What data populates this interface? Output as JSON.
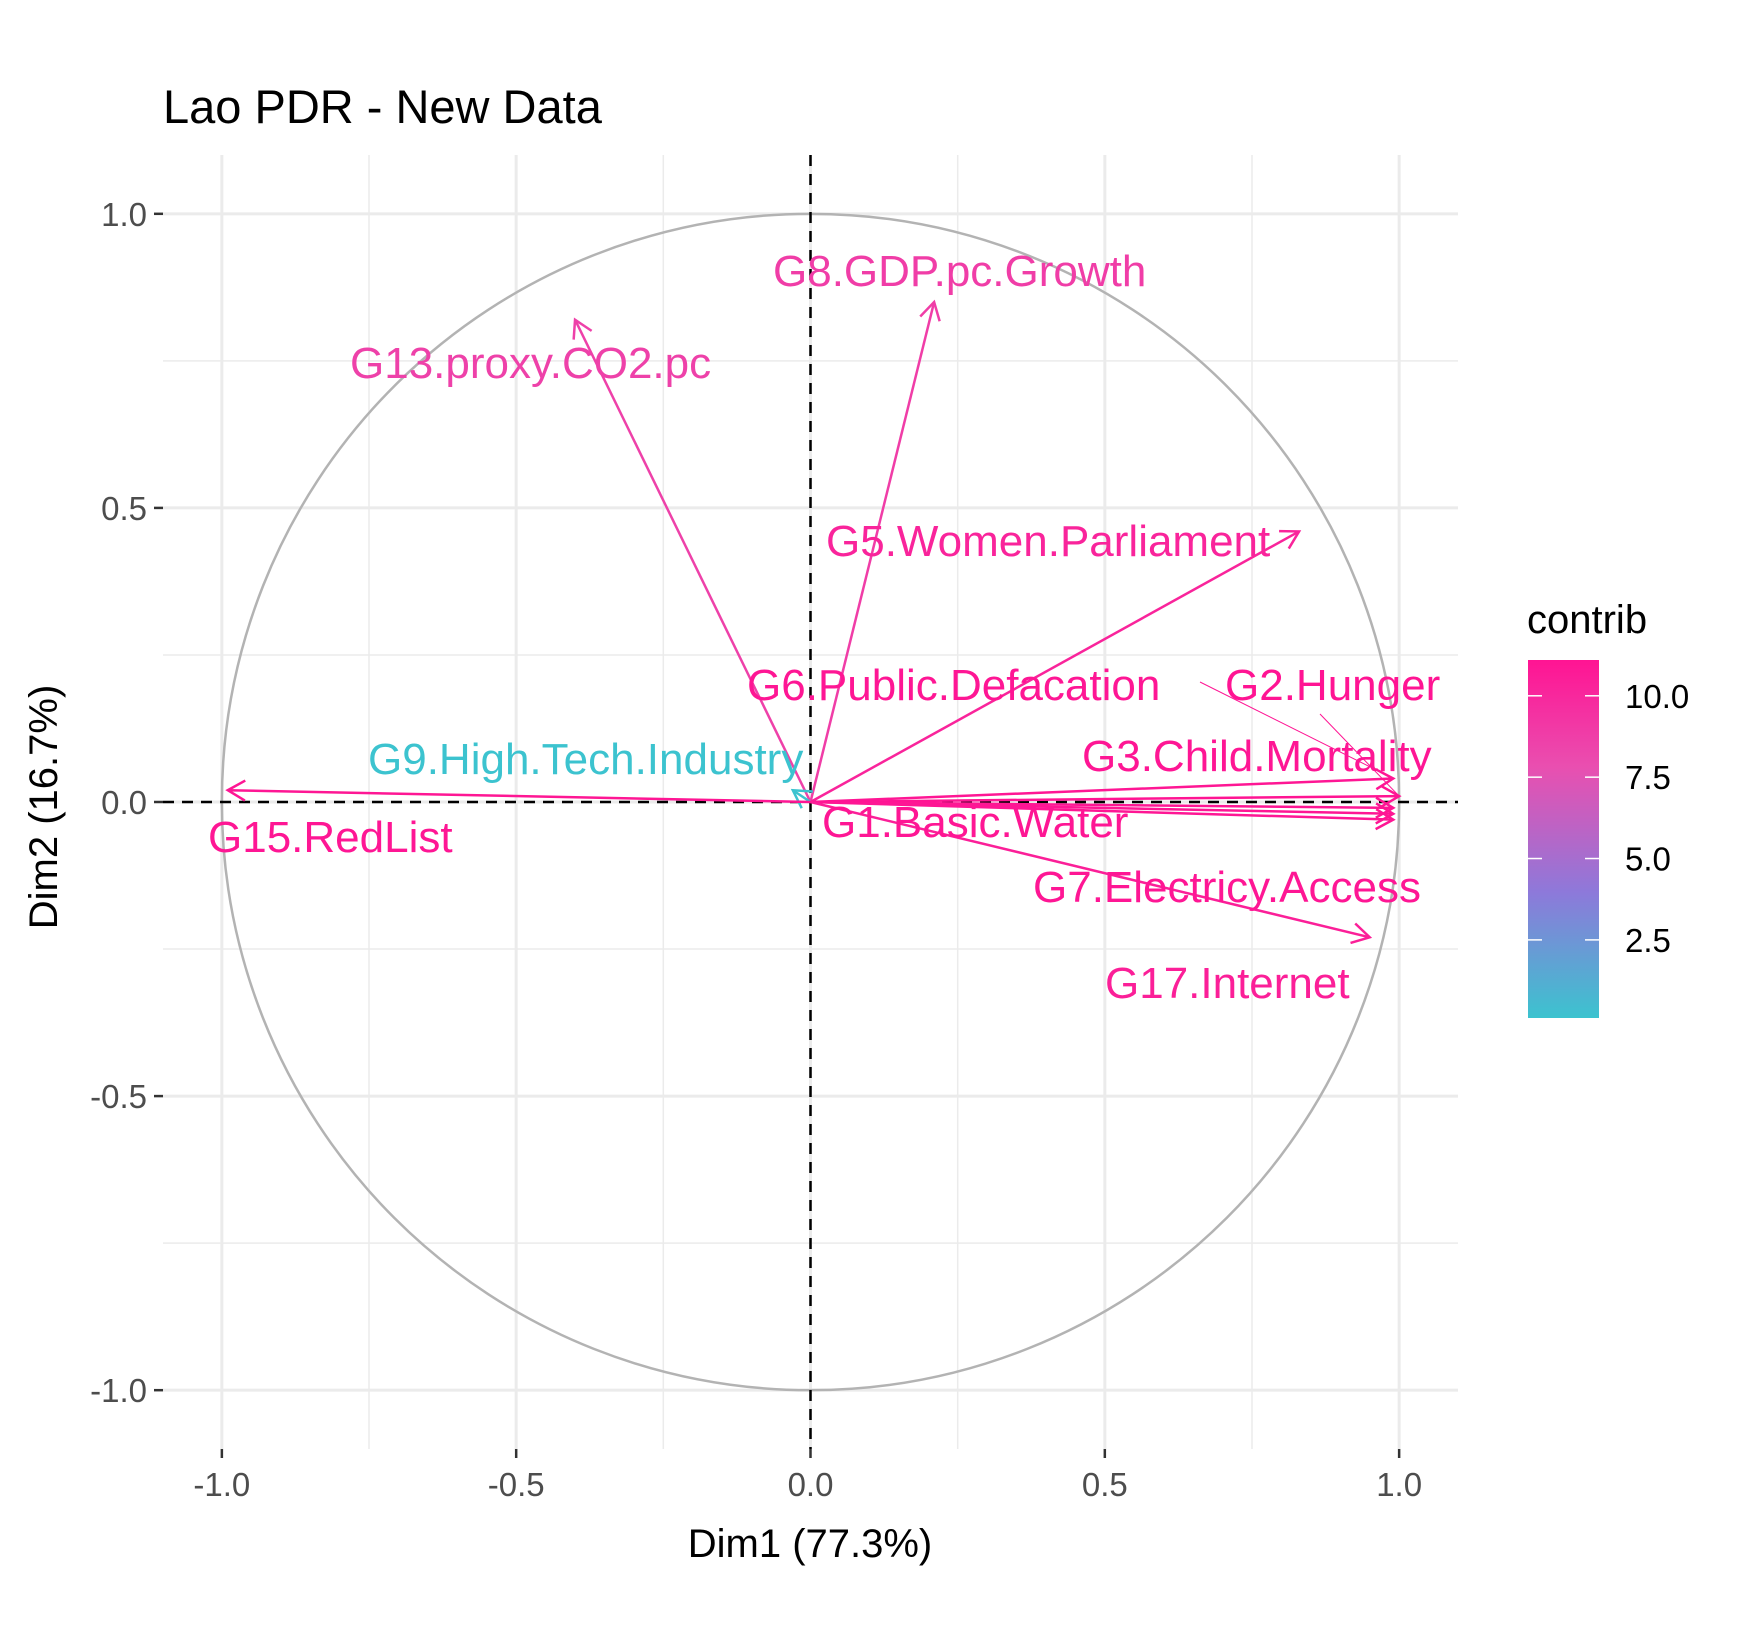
{
  "chart_data": {
    "type": "scatter",
    "subtype": "pca-variable-correlation-circle",
    "title": "Lao PDR - New Data",
    "xlabel": "Dim1 (77.3%)",
    "ylabel": "Dim2 (16.7%)",
    "xlim": [
      -1.1,
      1.1
    ],
    "ylim": [
      -1.1,
      1.1
    ],
    "x_ticks": [
      {
        "value": -1.0,
        "label": "-1.0"
      },
      {
        "value": -0.5,
        "label": "-0.5"
      },
      {
        "value": 0.0,
        "label": "0.0"
      },
      {
        "value": 0.5,
        "label": "0.5"
      },
      {
        "value": 1.0,
        "label": "1.0"
      }
    ],
    "y_ticks": [
      {
        "value": 1.0,
        "label": "1.0"
      },
      {
        "value": 0.5,
        "label": "0.5"
      },
      {
        "value": 0.0,
        "label": "0.0"
      },
      {
        "value": -0.5,
        "label": "-0.5"
      },
      {
        "value": -1.0,
        "label": "-1.0"
      }
    ],
    "grid": true,
    "unit_circle": true,
    "reference_lines": {
      "x": 0,
      "y": 0,
      "style": "dashed"
    },
    "variables": [
      {
        "name": "G8.GDP.pc.Growth",
        "x": 0.21,
        "y": 0.85,
        "contrib": 8.8
      },
      {
        "name": "G13.proxy.CO2.pc",
        "x": -0.4,
        "y": 0.82,
        "contrib": 8.6
      },
      {
        "name": "G5.Women.Parliament",
        "x": 0.83,
        "y": 0.46,
        "contrib": 10.2
      },
      {
        "name": "G6.Public.Defacation",
        "x": 0.99,
        "y": 0.04,
        "contrib": 11.0
      },
      {
        "name": "G2.Hunger",
        "x": 1.0,
        "y": 0.01,
        "contrib": 11.1
      },
      {
        "name": "G3.Child.Mortality",
        "x": 0.99,
        "y": -0.03,
        "contrib": 11.0
      },
      {
        "name": "G9.High.Tech.Industry",
        "x": -0.03,
        "y": 0.02,
        "contrib": 0.1
      },
      {
        "name": "G15.RedList",
        "x": -0.99,
        "y": 0.02,
        "contrib": 11.0
      },
      {
        "name": "G1.Basic.Water",
        "x": 0.99,
        "y": -0.01,
        "contrib": 11.0
      },
      {
        "name": "G7.Electricy.Access",
        "x": 0.99,
        "y": -0.02,
        "contrib": 11.0
      },
      {
        "name": "G17.Internet",
        "x": 0.95,
        "y": -0.23,
        "contrib": 10.5
      }
    ],
    "legend": {
      "title": "contrib",
      "position": "right",
      "type": "continuous-colorbar",
      "min": 0.1,
      "max": 11.1,
      "ticks": [
        {
          "value": 2.5,
          "label": "2.5"
        },
        {
          "value": 5.0,
          "label": "5.0"
        },
        {
          "value": 7.5,
          "label": "7.5"
        },
        {
          "value": 10.0,
          "label": "10.0"
        }
      ],
      "gradient": [
        "#3CC3CF",
        "#8D79DA",
        "#E94FB0",
        "#FF1493"
      ]
    }
  }
}
